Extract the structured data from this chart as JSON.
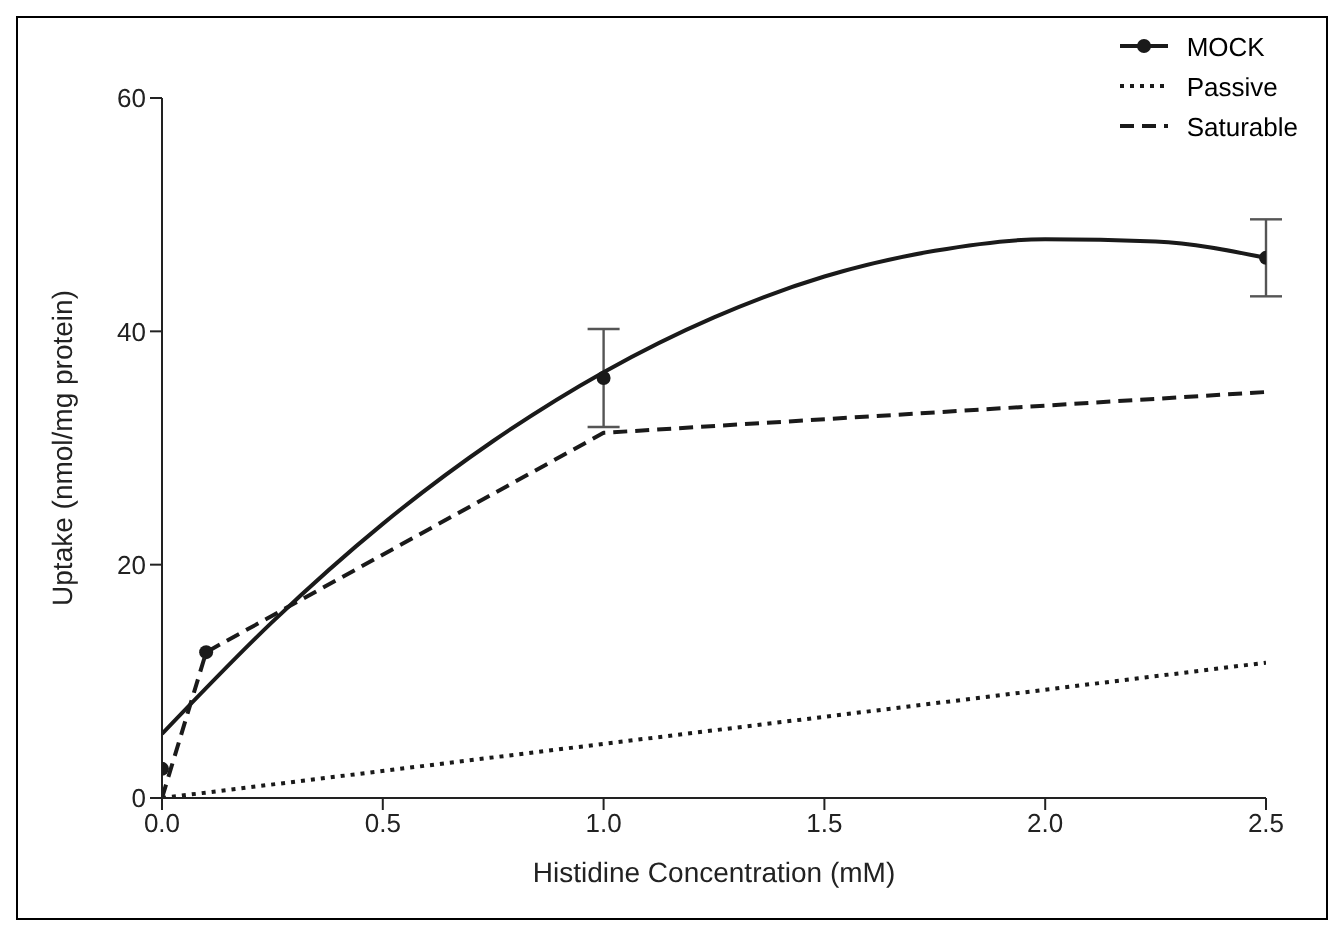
{
  "chart_data": {
    "type": "line",
    "xlabel": "Histidine Concentration (mM)",
    "ylabel": "Uptake (nmol/mg protein)",
    "xlim": [
      0,
      2.5
    ],
    "xticks": [
      {
        "value": 0,
        "label": "0.0"
      },
      0.5,
      {
        "value": 1,
        "label": "1.0"
      },
      1.5,
      {
        "value": 2,
        "label": "2.0"
      },
      2.5
    ],
    "ylim": [
      0,
      60
    ],
    "yticks": [
      0,
      20,
      40,
      60
    ],
    "grid": false,
    "legend": "top right",
    "series": [
      {
        "name": "MOCK",
        "type": "scatter",
        "color": "#1a1a1a",
        "marker": "circle",
        "x": [
          0,
          0.1,
          1,
          2.5
        ],
        "values": [
          2.5,
          12.5,
          36,
          46.3
        ],
        "errors": [
          null,
          null,
          4.2,
          3.3
        ]
      },
      {
        "color": "#1a1a1a",
        "line_style": "solid",
        "marker": "none",
        "x": [
          0,
          0.25,
          0.5,
          0.75,
          1,
          1.25,
          1.5,
          1.75,
          2,
          2.25,
          2.5
        ],
        "values": [
          5.5,
          15.1,
          23.5,
          30.6,
          36.5,
          41.2,
          44.7,
          46.9,
          47.9,
          47.7,
          46.3
        ]
      },
      {
        "name": "Passive",
        "color": "#1a1a1a",
        "line_style": "dotted",
        "marker": "none",
        "x": [
          0,
          2.5
        ],
        "values": [
          0,
          11.6
        ]
      },
      {
        "name": "Saturable",
        "color": "#1a1a1a",
        "line_style": "dashed",
        "marker": "none",
        "x": [
          0,
          0.1,
          1,
          2.5
        ],
        "values": [
          0,
          12.5,
          31.3,
          34.8
        ]
      }
    ]
  }
}
